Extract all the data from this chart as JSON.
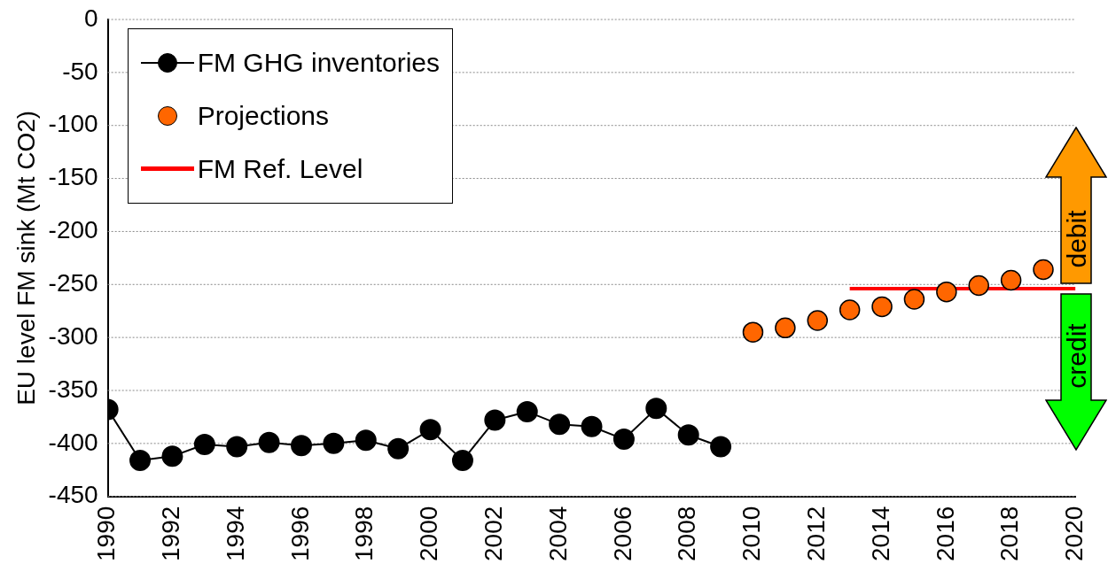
{
  "chart_data": {
    "type": "line",
    "ylabel": "EU level FM sink (Mt CO2)",
    "xlim": [
      1990,
      2020
    ],
    "xticks": [
      1990,
      1992,
      1994,
      1996,
      1998,
      2000,
      2002,
      2004,
      2006,
      2008,
      2010,
      2012,
      2014,
      2016,
      2018,
      2020
    ],
    "ylim": [
      -450,
      0
    ],
    "yticks": [
      -450,
      -400,
      -350,
      -300,
      -250,
      -200,
      -150,
      -100,
      -50,
      0
    ],
    "grid": "y",
    "legend": "top left",
    "marker": "circle",
    "annotations": [
      "debit",
      "credit"
    ],
    "series": [
      {
        "name": "FM GHG inventories",
        "color": "#000000",
        "x": [
          1990,
          1991,
          1992,
          1993,
          1994,
          1995,
          1996,
          1997,
          1998,
          1999,
          2000,
          2001,
          2002,
          2003,
          2004,
          2005,
          2006,
          2007,
          2008,
          2009
        ],
        "values": [
          -368,
          -416,
          -412,
          -401,
          -403,
          -399,
          -402,
          -400,
          -397,
          -405,
          -387,
          -416,
          -378,
          -370,
          -382,
          -384,
          -396,
          -367,
          -392,
          -403
        ]
      },
      {
        "name": "Projections",
        "type": "scatter",
        "color": "#ff6600",
        "x": [
          2010,
          2011,
          2012,
          2013,
          2014,
          2015,
          2016,
          2017,
          2018,
          2019
        ],
        "values": [
          -295,
          -291,
          -284,
          -274,
          -271,
          -264,
          -257,
          -251,
          -246,
          -236
        ]
      },
      {
        "name": "FM Ref. Level",
        "type": "line",
        "marker": "none",
        "color": "#ff0000",
        "x": [
          2013,
          2020
        ],
        "values": [
          -254,
          -254
        ]
      }
    ]
  }
}
